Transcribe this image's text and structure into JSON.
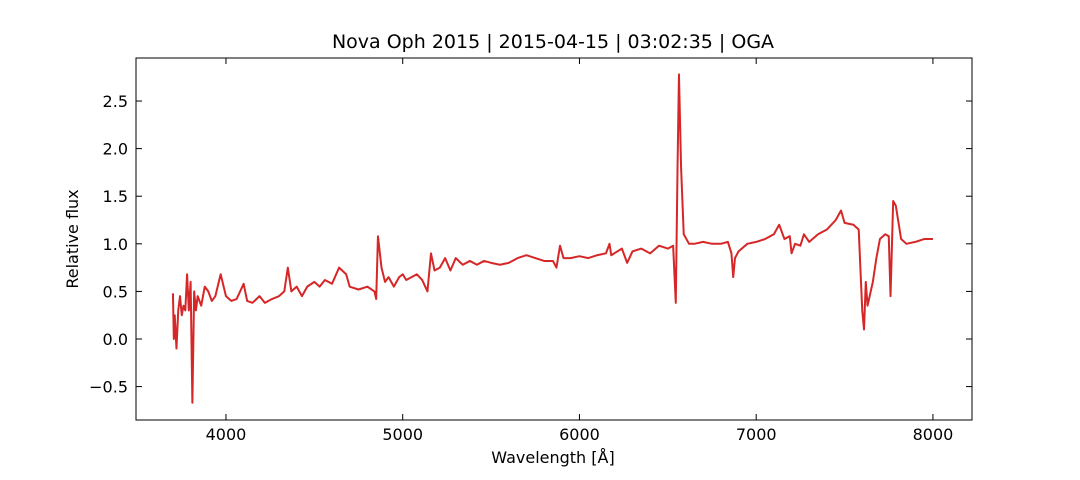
{
  "chart_data": {
    "type": "line",
    "title": "Nova Oph 2015 | 2015-04-15 | 03:02:35 | OGA",
    "xlabel": "Wavelength [Å]",
    "ylabel": "Relative flux",
    "x": [
      3700,
      3705,
      3710,
      3720,
      3730,
      3740,
      3750,
      3760,
      3770,
      3780,
      3790,
      3800,
      3810,
      3820,
      3830,
      3840,
      3860,
      3880,
      3900,
      3920,
      3940,
      3970,
      4000,
      4030,
      4060,
      4100,
      4120,
      4150,
      4190,
      4220,
      4260,
      4300,
      4330,
      4350,
      4370,
      4400,
      4430,
      4460,
      4500,
      4530,
      4560,
      4600,
      4640,
      4680,
      4700,
      4750,
      4800,
      4840,
      4850,
      4860,
      4880,
      4900,
      4920,
      4950,
      4980,
      5000,
      5020,
      5050,
      5080,
      5110,
      5140,
      5160,
      5180,
      5210,
      5240,
      5270,
      5300,
      5340,
      5380,
      5420,
      5460,
      5500,
      5550,
      5600,
      5650,
      5700,
      5750,
      5800,
      5850,
      5870,
      5890,
      5910,
      5950,
      6000,
      6050,
      6100,
      6150,
      6170,
      6180,
      6240,
      6270,
      6300,
      6350,
      6400,
      6450,
      6500,
      6530,
      6545,
      6555,
      6563,
      6575,
      6590,
      6620,
      6650,
      6700,
      6750,
      6800,
      6840,
      6860,
      6870,
      6880,
      6900,
      6950,
      7000,
      7050,
      7100,
      7130,
      7160,
      7190,
      7200,
      7220,
      7250,
      7270,
      7300,
      7350,
      7400,
      7450,
      7480,
      7500,
      7550,
      7580,
      7600,
      7610,
      7620,
      7630,
      7660,
      7680,
      7700,
      7730,
      7750,
      7760,
      7775,
      7790,
      7820,
      7850,
      7900,
      7950,
      8000
    ],
    "series": [
      {
        "name": "Nova Oph 2015",
        "color": "#d62728",
        "values": [
          0.48,
          0.0,
          0.25,
          -0.1,
          0.3,
          0.45,
          0.25,
          0.35,
          0.3,
          0.68,
          0.3,
          0.6,
          -0.67,
          0.5,
          0.3,
          0.45,
          0.35,
          0.55,
          0.5,
          0.4,
          0.45,
          0.68,
          0.45,
          0.4,
          0.42,
          0.58,
          0.4,
          0.38,
          0.45,
          0.38,
          0.42,
          0.45,
          0.5,
          0.75,
          0.5,
          0.55,
          0.45,
          0.55,
          0.6,
          0.55,
          0.62,
          0.58,
          0.75,
          0.68,
          0.55,
          0.52,
          0.55,
          0.5,
          0.42,
          1.08,
          0.75,
          0.6,
          0.65,
          0.55,
          0.65,
          0.68,
          0.62,
          0.65,
          0.68,
          0.62,
          0.5,
          0.9,
          0.72,
          0.75,
          0.85,
          0.72,
          0.85,
          0.78,
          0.82,
          0.78,
          0.82,
          0.8,
          0.78,
          0.8,
          0.85,
          0.88,
          0.85,
          0.82,
          0.82,
          0.75,
          0.98,
          0.85,
          0.85,
          0.87,
          0.85,
          0.88,
          0.9,
          1.0,
          0.88,
          0.95,
          0.8,
          0.92,
          0.95,
          0.9,
          0.98,
          0.95,
          0.98,
          0.38,
          1.8,
          2.78,
          1.8,
          1.1,
          1.0,
          1.0,
          1.02,
          1.0,
          1.0,
          1.02,
          0.9,
          0.65,
          0.85,
          0.92,
          1.0,
          1.02,
          1.05,
          1.1,
          1.2,
          1.05,
          1.08,
          0.9,
          1.0,
          0.98,
          1.1,
          1.02,
          1.1,
          1.15,
          1.25,
          1.35,
          1.22,
          1.2,
          1.15,
          0.3,
          0.1,
          0.6,
          0.35,
          0.6,
          0.85,
          1.05,
          1.1,
          1.08,
          0.45,
          1.45,
          1.4,
          1.05,
          1.0,
          1.02,
          1.05,
          1.05
        ]
      }
    ],
    "xlim": [
      3491,
      8221
    ],
    "ylim": [
      -0.851,
      2.952
    ],
    "xticks": [
      4000,
      5000,
      6000,
      7000,
      8000
    ],
    "yticks": [
      {
        "value": -0.5,
        "label": "−0.5"
      },
      {
        "value": 0,
        "label": "0.0"
      },
      0.5,
      {
        "value": 1,
        "label": "1.0"
      },
      1.5,
      {
        "value": 2,
        "label": "2.0"
      },
      2.5
    ]
  }
}
